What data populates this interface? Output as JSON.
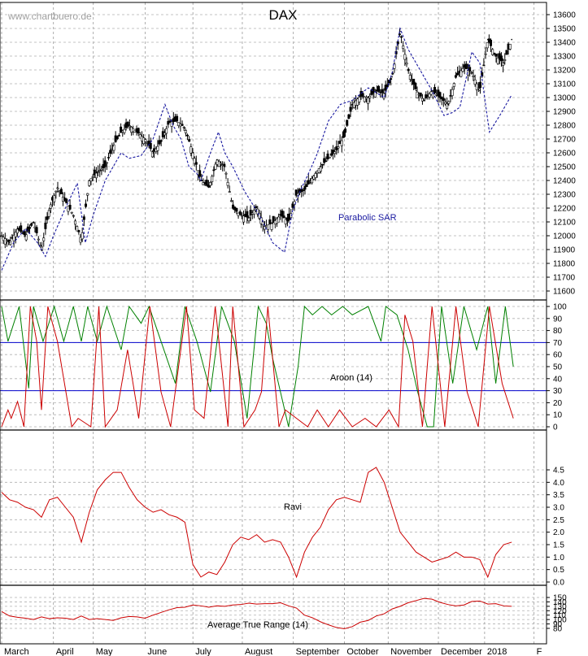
{
  "watermark": "www.chartbuero.de",
  "chart_data": [
    {
      "panel": "price",
      "type": "candlestick",
      "title": "DAX",
      "ylim": [
        11600,
        13600
      ],
      "yticks": [
        11600,
        11700,
        11800,
        11900,
        12000,
        12100,
        12200,
        12300,
        12400,
        12500,
        12600,
        12700,
        12800,
        12900,
        13000,
        13100,
        13200,
        13300,
        13400,
        13500,
        13600
      ],
      "annotation": "Parabolic SAR",
      "series": [
        {
          "indicator": "close",
          "color": "#000000",
          "x": [
            0,
            10,
            20,
            30,
            40,
            50,
            60,
            70,
            80,
            90,
            100,
            110,
            120,
            130,
            140,
            150,
            160,
            170,
            180,
            190,
            200,
            210,
            220,
            230,
            240,
            250,
            260,
            270,
            280,
            290,
            300,
            310,
            320,
            330,
            340,
            350,
            360,
            370,
            380,
            390,
            400,
            410,
            420,
            430,
            440,
            450,
            460,
            470,
            480,
            490,
            500,
            510,
            520,
            530,
            540,
            550,
            560,
            570,
            580,
            590,
            600,
            610,
            620,
            630,
            640
          ],
          "values": [
            12000,
            11950,
            12050,
            12000,
            12100,
            11900,
            12200,
            12350,
            12250,
            12150,
            11970,
            12400,
            12460,
            12500,
            12650,
            12750,
            12800,
            12750,
            12700,
            12600,
            12680,
            12820,
            12830,
            12780,
            12600,
            12400,
            12350,
            12550,
            12500,
            12200,
            12150,
            12130,
            12210,
            12070,
            12090,
            12150,
            12100,
            12300,
            12330,
            12420,
            12500,
            12560,
            12620,
            12720,
            12950,
            13010,
            13000,
            13050,
            13030,
            13150,
            13480,
            13200,
            13050,
            12980,
            13050,
            13000,
            12950,
            13150,
            13220,
            13180,
            13050,
            13420,
            13300,
            13250,
            13420
          ]
        },
        {
          "indicator": "parabolic_sar",
          "color": "#1a1aa0",
          "x": [
            0,
            15,
            30,
            45,
            55,
            65,
            80,
            95,
            105,
            115,
            130,
            140,
            150,
            160,
            175,
            190,
            205,
            215,
            225,
            235,
            245,
            250,
            262,
            272,
            280,
            290,
            305,
            318,
            328,
            340,
            355,
            365,
            375,
            385,
            395,
            410,
            425,
            440,
            460,
            480,
            490,
            500,
            510,
            525,
            540,
            555,
            565,
            575,
            590,
            600,
            612,
            625,
            640
          ],
          "values": [
            11750,
            11950,
            12050,
            11950,
            11850,
            12000,
            12200,
            12380,
            11950,
            12150,
            12400,
            12500,
            12600,
            12560,
            12580,
            12700,
            12950,
            12800,
            12700,
            12500,
            12450,
            12400,
            12600,
            12750,
            12600,
            12500,
            12320,
            12200,
            12100,
            11950,
            11880,
            12180,
            12330,
            12450,
            12580,
            12830,
            12950,
            12980,
            13070,
            13000,
            13180,
            13500,
            13350,
            13200,
            13050,
            12870,
            12890,
            12930,
            13330,
            13250,
            12750,
            12870,
            13020
          ]
        }
      ]
    },
    {
      "panel": "aroon",
      "type": "line",
      "title": "Aroon (14)",
      "ylim": [
        0,
        100
      ],
      "yticks": [
        0,
        10,
        20,
        30,
        40,
        50,
        60,
        70,
        80,
        90,
        100
      ],
      "reference_lines": [
        30,
        70
      ],
      "series": [
        {
          "indicator": "aroon_up",
          "color": "#008000",
          "x": [
            0,
            8,
            22,
            34,
            40,
            52,
            66,
            78,
            90,
            100,
            108,
            120,
            132,
            150,
            160,
            175,
            185,
            200,
            218,
            230,
            245,
            262,
            276,
            292,
            308,
            322,
            332,
            340,
            360,
            372,
            380,
            390,
            402,
            414,
            428,
            440,
            460,
            476,
            482,
            496,
            510,
            522,
            534,
            542,
            552,
            566,
            580,
            596,
            610,
            620,
            632,
            642
          ],
          "values": [
            100,
            71,
            100,
            32,
            100,
            71,
            100,
            71,
            100,
            71,
            100,
            71,
            100,
            64,
            100,
            86,
            100,
            71,
            36,
            100,
            71,
            29,
            100,
            71,
            7,
            100,
            86,
            57,
            0,
            50,
            100,
            93,
            100,
            93,
            100,
            93,
            100,
            71,
            100,
            93,
            64,
            29,
            0,
            0,
            100,
            36,
            100,
            64,
            100,
            36,
            100,
            50
          ]
        },
        {
          "indicator": "aroon_down",
          "color": "#cc0000",
          "x": [
            0,
            8,
            12,
            20,
            28,
            36,
            44,
            50,
            58,
            70,
            88,
            96,
            112,
            122,
            130,
            145,
            158,
            172,
            186,
            200,
            212,
            232,
            242,
            254,
            268,
            284,
            290,
            304,
            318,
            326,
            334,
            348,
            356,
            370,
            384,
            396,
            410,
            424,
            440,
            456,
            470,
            486,
            498,
            506,
            516,
            528,
            540,
            556,
            570,
            584,
            598,
            612,
            628,
            642
          ],
          "values": [
            0,
            14,
            7,
            21,
            0,
            100,
            71,
            14,
            100,
            71,
            0,
            7,
            0,
            100,
            0,
            14,
            64,
            7,
            100,
            29,
            0,
            100,
            14,
            7,
            100,
            0,
            100,
            0,
            14,
            29,
            100,
            0,
            14,
            7,
            0,
            14,
            0,
            14,
            0,
            7,
            0,
            14,
            0,
            93,
            71,
            0,
            100,
            0,
            100,
            29,
            0,
            100,
            36,
            7
          ]
        }
      ]
    },
    {
      "panel": "ravi",
      "type": "line",
      "title": "Ravi",
      "ylim": [
        0,
        4.5
      ],
      "yticks": [
        0.0,
        0.5,
        1.0,
        1.5,
        2.0,
        2.5,
        3.0,
        3.5,
        4.0,
        4.5
      ],
      "series": [
        {
          "indicator": "ravi",
          "color": "#cc0000",
          "x": [
            0,
            10,
            20,
            30,
            40,
            50,
            60,
            70,
            80,
            90,
            100,
            110,
            120,
            130,
            140,
            150,
            160,
            170,
            180,
            190,
            200,
            210,
            220,
            230,
            240,
            250,
            260,
            270,
            280,
            290,
            300,
            310,
            320,
            330,
            340,
            350,
            360,
            370,
            380,
            390,
            400,
            410,
            420,
            430,
            440,
            450,
            460,
            470,
            480,
            490,
            500,
            510,
            520,
            530,
            540,
            550,
            560,
            570,
            580,
            590,
            600,
            610,
            620,
            630,
            640
          ],
          "values": [
            3.6,
            3.3,
            3.2,
            3.0,
            2.9,
            2.6,
            3.3,
            3.4,
            3.0,
            2.6,
            1.6,
            2.8,
            3.7,
            4.1,
            4.4,
            4.4,
            3.8,
            3.3,
            3.0,
            2.8,
            2.9,
            2.7,
            2.6,
            2.4,
            0.7,
            0.2,
            0.4,
            0.3,
            0.8,
            1.5,
            1.8,
            1.7,
            1.9,
            1.6,
            1.7,
            1.6,
            1.0,
            0.2,
            1.2,
            1.8,
            2.2,
            2.9,
            3.3,
            3.4,
            3.3,
            3.2,
            4.4,
            4.6,
            4.0,
            3.0,
            2.0,
            1.6,
            1.2,
            1.0,
            0.8,
            0.9,
            1.0,
            1.2,
            1.0,
            1.0,
            0.9,
            0.2,
            1.1,
            1.5,
            1.6
          ]
        }
      ]
    },
    {
      "panel": "atr",
      "type": "line",
      "title": "Average True Range (14)",
      "ylim": [
        75,
        155
      ],
      "yticks": [
        80,
        90,
        100,
        110,
        120,
        130,
        140,
        150
      ],
      "series": [
        {
          "indicator": "atr",
          "color": "#cc0000",
          "x": [
            0,
            10,
            20,
            30,
            40,
            50,
            60,
            70,
            80,
            90,
            100,
            110,
            120,
            130,
            140,
            150,
            160,
            170,
            180,
            190,
            200,
            210,
            220,
            230,
            240,
            250,
            260,
            270,
            280,
            290,
            300,
            310,
            320,
            330,
            340,
            350,
            360,
            370,
            380,
            390,
            400,
            410,
            420,
            430,
            440,
            450,
            460,
            470,
            480,
            490,
            500,
            510,
            520,
            530,
            540,
            550,
            560,
            570,
            580,
            590,
            600,
            610,
            620,
            630,
            640
          ],
          "values": [
            118,
            108,
            105,
            103,
            100,
            106,
            102,
            104,
            103,
            100,
            108,
            100,
            102,
            100,
            98,
            104,
            107,
            106,
            103,
            110,
            116,
            122,
            127,
            128,
            133,
            131,
            128,
            131,
            130,
            133,
            134,
            137,
            135,
            136,
            136,
            138,
            131,
            126,
            110,
            104,
            95,
            88,
            82,
            79,
            84,
            94,
            98,
            108,
            113,
            124,
            130,
            138,
            143,
            148,
            146,
            139,
            134,
            131,
            133,
            141,
            142,
            135,
            136,
            131,
            130
          ]
        }
      ]
    }
  ],
  "x_axis": {
    "months": [
      "March",
      "April",
      "May",
      "June",
      "July",
      "August",
      "September",
      "October",
      "November",
      "December",
      "2018",
      "F"
    ],
    "month_positions": [
      0,
      65,
      115,
      180,
      240,
      302,
      366,
      430,
      485,
      548,
      606,
      668
    ]
  }
}
